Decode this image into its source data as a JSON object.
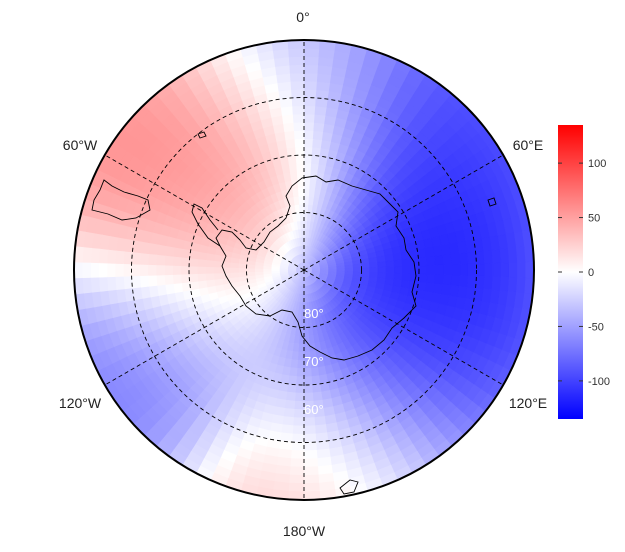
{
  "map": {
    "projection": "south polar stereographic",
    "longitude_labels": [
      {
        "id": "0",
        "text": "0°"
      },
      {
        "id": "60e",
        "text": "60°E"
      },
      {
        "id": "120e",
        "text": "120°E"
      },
      {
        "id": "180w",
        "text": "180°W"
      },
      {
        "id": "120w",
        "text": "120°W"
      },
      {
        "id": "60w",
        "text": "60°W"
      }
    ],
    "latitude_labels": [
      {
        "id": "80",
        "text": "80°"
      },
      {
        "id": "70",
        "text": "70°"
      },
      {
        "id": "60",
        "text": "60°"
      }
    ],
    "graticule_latitudes": [
      80,
      70,
      60
    ],
    "graticule_longitudes": [
      0,
      60,
      120,
      180,
      240,
      300
    ],
    "features": [
      "Antarctica coastline",
      "South America tip",
      "South Georgia",
      "Kerguelen",
      "Campbell Island"
    ]
  },
  "colorbar": {
    "min": -135,
    "max": 135,
    "colors": {
      "low": "#0000ff",
      "mid": "#ffffff",
      "high": "#ff0000"
    },
    "ticks": [
      {
        "value": 100,
        "label": "100"
      },
      {
        "value": 50,
        "label": "50"
      },
      {
        "value": 0,
        "label": "0"
      },
      {
        "value": -50,
        "label": "-50"
      },
      {
        "value": -100,
        "label": "-100"
      }
    ]
  },
  "field": {
    "description_units": "anomaly",
    "anomalies": [
      {
        "lon": -55,
        "lat": -62,
        "value": 75
      },
      {
        "lon": -25,
        "lat": -68,
        "value": 60
      },
      {
        "lon": -90,
        "lat": -72,
        "value": 30
      },
      {
        "lon": 180,
        "lat": -52,
        "value": 40
      },
      {
        "lon": 165,
        "lat": -55,
        "value": 25
      },
      {
        "lon": 75,
        "lat": -70,
        "value": -130
      },
      {
        "lon": 120,
        "lat": -68,
        "value": -125
      },
      {
        "lon": 150,
        "lat": -62,
        "value": -100
      },
      {
        "lon": 40,
        "lat": -58,
        "value": -110
      },
      {
        "lon": -120,
        "lat": -60,
        "value": -90
      },
      {
        "lon": 0,
        "lat": -55,
        "value": -45
      }
    ]
  }
}
